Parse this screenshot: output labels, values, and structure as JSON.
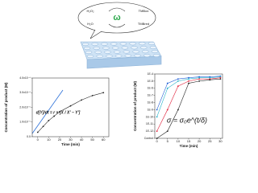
{
  "illustration": {
    "labels": [
      "H₂O₂",
      "H₂O",
      "TMBox",
      "TMBred"
    ]
  },
  "chart_data": [
    {
      "type": "line",
      "xlabel": "Time (min)",
      "ylabel": "Concentration of product (M)",
      "annotation": "d[Y]/dt = r × [X / X' − Y']",
      "x": [
        0,
        5,
        10,
        15,
        20,
        30,
        40,
        50,
        60
      ],
      "series": [
        {
          "color": "#222222",
          "values": [
            3e-07,
            7e-07,
            1.1e-06,
            1.4e-06,
            1.7e-06,
            2.1e-06,
            2.5e-06,
            2.8e-06,
            3e-06
          ]
        }
      ],
      "xlim": [
        -5,
        65
      ],
      "xticks": [
        0,
        10,
        20,
        30,
        40,
        50,
        60
      ],
      "ylim": [
        0,
        4e-06
      ],
      "yticks": [
        {
          "value": 0,
          "label": "0.0"
        },
        {
          "value": 1e-06,
          "label": "1.0x10⁻⁶"
        },
        {
          "value": 2e-06,
          "label": "2.0x10⁻⁶"
        },
        {
          "value": 3e-06,
          "label": "3.0x10⁻⁶"
        },
        {
          "value": 4e-06,
          "label": "4.0x10⁻⁶"
        }
      ]
    },
    {
      "type": "line",
      "xlabel": "Time (min)",
      "ylabel": "Concentration of product (M)",
      "annotation": "σ = σ₀e^(t/δ)",
      "log_y": true,
      "x": [
        0,
        5,
        10,
        15,
        20,
        25,
        30
      ],
      "series": [
        {
          "color": "#1f5fd6",
          "values": [
            1e-09,
            5e-06,
            2e-05,
            3e-05,
            4e-05,
            4e-05,
            5e-05
          ]
        },
        {
          "color": "#22b0c8",
          "values": [
            1e-10,
            1e-06,
            1e-05,
            2e-05,
            3e-05,
            3e-05,
            4e-05
          ]
        },
        {
          "color": "#e0203a",
          "values": [
            1e-12,
            1e-09,
            2e-06,
            1e-05,
            2e-05,
            2e-05,
            3e-05
          ]
        },
        {
          "color": "#222222",
          "values": [
            1e-13,
            1e-12,
            1e-09,
            5e-06,
            1e-05,
            1.5e-05,
            2e-05
          ]
        }
      ],
      "xlim": [
        -1,
        31
      ],
      "xticks": [
        0,
        5,
        10,
        15,
        20,
        25,
        30
      ],
      "ylim": [
        1e-13,
        0.0001
      ],
      "yticks": [
        {
          "value": 1e-13,
          "label": "Control"
        },
        {
          "value": 1e-12,
          "label": "1E-12"
        },
        {
          "value": 1e-11,
          "label": "1E-11"
        },
        {
          "value": 1e-10,
          "label": "1E-10"
        },
        {
          "value": 1e-09,
          "label": "1E-9"
        },
        {
          "value": 1e-08,
          "label": "1E-8"
        },
        {
          "value": 1e-07,
          "label": "1E-7"
        },
        {
          "value": 1e-06,
          "label": "1E-6"
        },
        {
          "value": 1e-05,
          "label": "1E-5"
        },
        {
          "value": 0.0001,
          "label": "1E-4"
        }
      ]
    }
  ]
}
